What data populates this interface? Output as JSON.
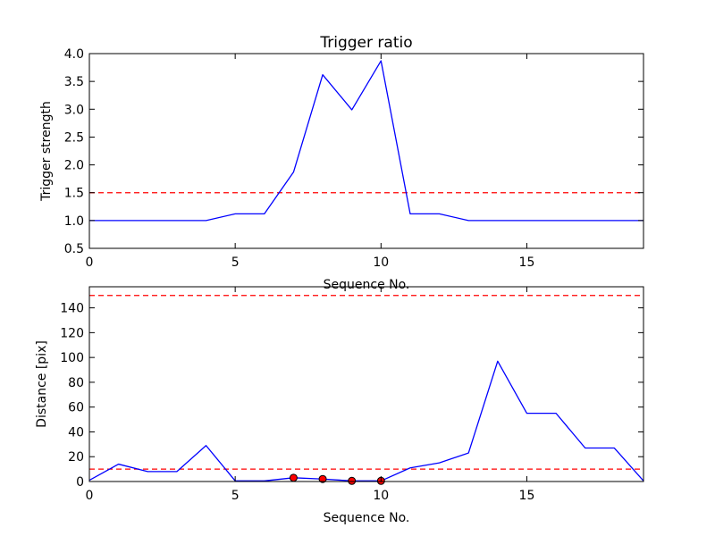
{
  "chart_data": [
    {
      "type": "line",
      "title": "Trigger ratio",
      "xlabel": "Sequence No.",
      "ylabel": "Trigger strength",
      "xlim": [
        0,
        19
      ],
      "ylim": [
        0.5,
        4.0
      ],
      "xticks": [
        0,
        5,
        10,
        15
      ],
      "yticks": [
        0.5,
        1.0,
        1.5,
        2.0,
        2.5,
        3.0,
        3.5,
        4.0
      ],
      "ytick_labels": [
        "0.5",
        "1.0",
        "1.5",
        "2.0",
        "2.5",
        "3.0",
        "3.5",
        "4.0"
      ],
      "grid": false,
      "series": [
        {
          "color": "#0000ff",
          "x": [
            0,
            1,
            2,
            3,
            4,
            5,
            6,
            7,
            8,
            9,
            10,
            11,
            12,
            13,
            14,
            15,
            16,
            17,
            18,
            19
          ],
          "values": [
            1.0,
            1.0,
            1.0,
            1.0,
            1.0,
            1.12,
            1.12,
            1.87,
            3.62,
            2.99,
            3.87,
            1.12,
            1.12,
            1.0,
            1.0,
            1.0,
            1.0,
            1.0,
            1.0,
            1.0
          ]
        }
      ],
      "thresholds": [
        {
          "y": 1.5,
          "color": "#ff0000",
          "style": "dashed"
        }
      ]
    },
    {
      "type": "line",
      "title": "",
      "xlabel": "Sequence No.",
      "ylabel": "Distance [pix]",
      "xlim": [
        0,
        19
      ],
      "ylim": [
        0,
        157
      ],
      "xticks": [
        0,
        5,
        10,
        15
      ],
      "yticks": [
        0,
        20,
        40,
        60,
        80,
        100,
        120,
        140
      ],
      "ytick_labels": [
        "0",
        "20",
        "40",
        "60",
        "80",
        "100",
        "120",
        "140"
      ],
      "grid": false,
      "series": [
        {
          "color": "#0000ff",
          "x": [
            0,
            1,
            2,
            3,
            4,
            5,
            6,
            7,
            8,
            9,
            10,
            11,
            12,
            13,
            14,
            15,
            16,
            17,
            18,
            19
          ],
          "values": [
            1,
            14,
            8,
            8,
            29,
            0.5,
            0.5,
            3,
            2,
            0.5,
            0.5,
            11,
            15,
            23,
            97,
            55,
            55,
            27,
            27,
            0.5
          ]
        }
      ],
      "markers": {
        "color": "#ff0000",
        "x": [
          7,
          8,
          9,
          10
        ],
        "values": [
          3,
          2,
          0.5,
          0.5
        ]
      },
      "thresholds": [
        {
          "y": 150,
          "color": "#ff0000",
          "style": "dashed"
        },
        {
          "y": 10,
          "color": "#ff0000",
          "style": "dashed"
        }
      ]
    }
  ]
}
